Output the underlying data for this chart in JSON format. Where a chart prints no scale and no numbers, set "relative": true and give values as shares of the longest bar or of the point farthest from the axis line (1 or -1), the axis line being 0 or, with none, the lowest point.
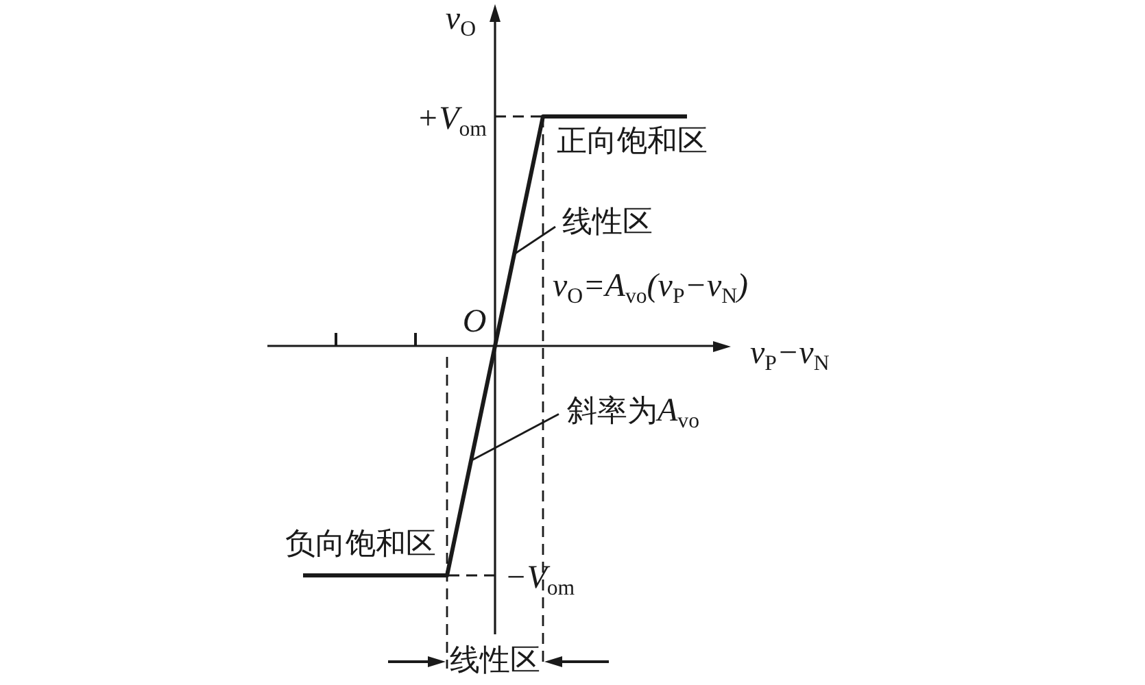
{
  "chart_data": {
    "type": "line",
    "relative": true,
    "xlabel": "v$_{P}$−v$_{N}$",
    "ylabel": "v$_{O}$",
    "categories": [
      null,
      null,
      null,
      null,
      null,
      null,
      null,
      null,
      null
    ],
    "series": [
      {
        "color": "#1a1a1a",
        "values": [
          -1,
          -1,
          -1,
          -1,
          0,
          1,
          1,
          1,
          1
        ]
      }
    ],
    "ref_lines": [
      {
        "axis": "y",
        "value": 1,
        "label": "+V$_{om}$",
        "line_style": "dashed"
      },
      {
        "axis": "y",
        "value": -1,
        "label": "−V$_{om}$",
        "line_style": "dashed"
      }
    ],
    "annotations": [
      "O",
      {
        "text": "正向饱和区",
        "y": 1
      },
      "线性区",
      "v$_{O}$=A$_{vo}$(v$_{P}$−v$_{N}$)",
      "斜率为A$_{vo}$",
      {
        "text": "负向饱和区",
        "y": -1
      },
      "线性区"
    ],
    "marker": "none"
  }
}
